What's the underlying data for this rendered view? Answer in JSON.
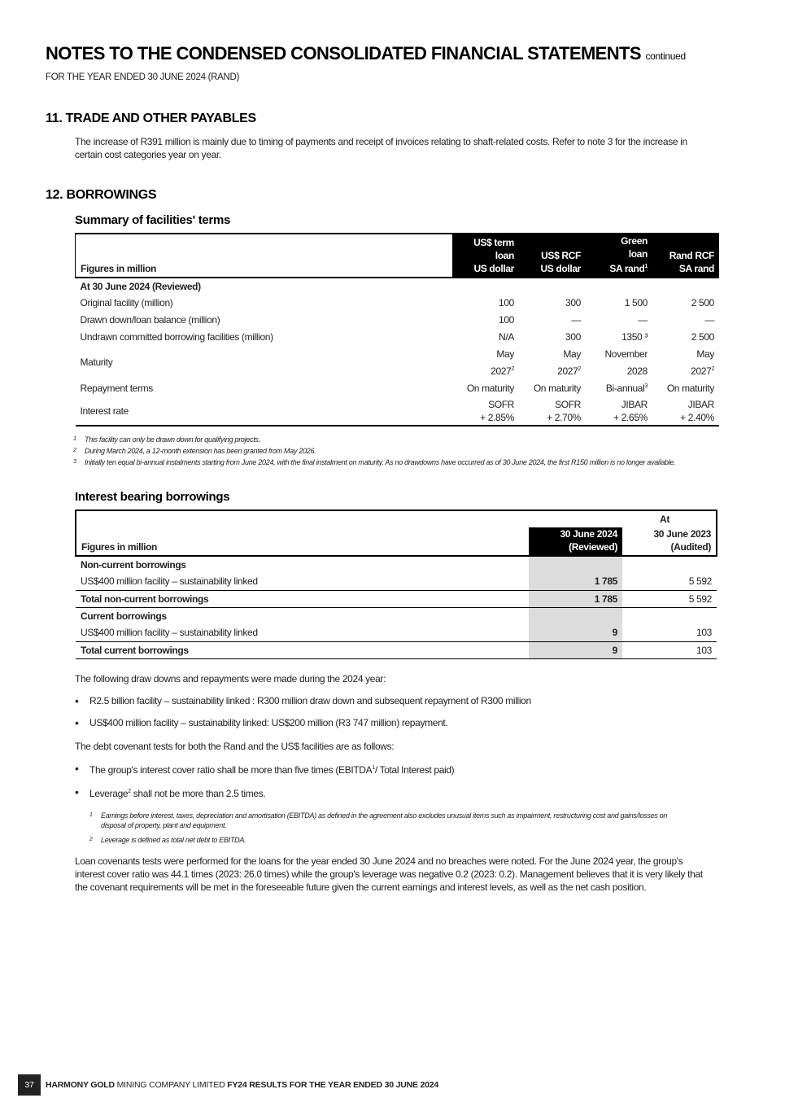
{
  "header": {
    "title": "NOTES TO THE CONDENSED CONSOLIDATED FINANCIAL STATEMENTS",
    "title_suffix": "continued",
    "subtitle": "FOR THE YEAR ENDED 30 JUNE 2024 (RAND)"
  },
  "s11": {
    "heading": "11.  TRADE AND OTHER PAYABLES",
    "text": "The increase of R391 million is mainly due to timing of payments and receipt of invoices relating to shaft-related costs. Refer to note 3 for the increase in certain cost categories year on year."
  },
  "s12": {
    "heading": "12.  BORROWINGS",
    "summary_title": "Summary of facilities' terms",
    "t1": {
      "label_header": "Figures in million",
      "cols": [
        {
          "l1": "US$ term",
          "l2": "loan",
          "l3": "US dollar",
          "sup": ""
        },
        {
          "l1": "",
          "l2": "US$ RCF",
          "l3": "US dollar",
          "sup": ""
        },
        {
          "l1": "Green",
          "l2": "loan",
          "l3": "SA rand",
          "sup": "1"
        },
        {
          "l1": "",
          "l2": "Rand RCF",
          "l3": "SA rand",
          "sup": ""
        }
      ],
      "section": "At 30 June 2024 (Reviewed)",
      "rows": [
        {
          "label": "Original facility (million)",
          "v": [
            "100",
            "300",
            "1 500",
            "2 500"
          ]
        },
        {
          "label": "Drawn down/loan balance (million)",
          "v": [
            "100",
            "—",
            "—",
            "—"
          ]
        },
        {
          "label": "Undrawn committed borrowing facilities (million)",
          "v": [
            "N/A",
            "300",
            "1350 ³",
            "2 500"
          ]
        }
      ],
      "maturity": {
        "label": "Maturity",
        "a": [
          "May",
          "May",
          "November",
          "May"
        ],
        "b": [
          "2027",
          "2027",
          "2028",
          "2027"
        ],
        "sup": [
          "2",
          "2",
          "",
          "2"
        ]
      },
      "repayment": {
        "label": "Repayment terms",
        "v": [
          "On maturity",
          "On maturity",
          "Bi-annual",
          "On maturity"
        ],
        "sup": [
          "",
          "",
          "3",
          ""
        ]
      },
      "interest": {
        "label": "Interest rate",
        "a": [
          "SOFR",
          "SOFR",
          "JIBAR",
          "JIBAR"
        ],
        "b": [
          "+ 2.85%",
          "+ 2.70%",
          "+ 2.65%",
          "+ 2.40%"
        ]
      }
    },
    "t1_footnotes": [
      "This facility can only be drawn down for qualifying projects.",
      "During March 2024, a 12-month extension has been granted from May 2026.",
      "Initially ten equal bi-annual instalments starting from June 2024, with the final instalment on maturity. As no drawdowns have occurred as of 30 June 2024, the first R150 million is no longer available."
    ],
    "ib_title": "Interest bearing borrowings",
    "t2": {
      "at": "At",
      "label_header": "Figures in million",
      "c1a": "30 June 2024",
      "c1b": "(Reviewed)",
      "c2a": "30 June 2023",
      "c2b": "(Audited)",
      "rows": [
        {
          "label": "Non-current borrowings",
          "a": "",
          "b": "",
          "bold": true
        },
        {
          "label": "US$400 million facility – sustainability linked",
          "a": "1 785",
          "b": "5 592"
        },
        {
          "label": "Total non-current borrowings",
          "a": "1 785",
          "b": "5 592",
          "bold": true
        },
        {
          "label": "Current borrowings",
          "a": "",
          "b": "",
          "bold": true
        },
        {
          "label": "US$400 million facility – sustainability linked",
          "a": "9",
          "b": "103"
        },
        {
          "label": "Total current borrowings",
          "a": "9",
          "b": "103",
          "bold": true
        }
      ]
    },
    "p1": "The following draw downs and repayments were made during the 2024 year:",
    "bullets1": [
      "R2.5 billion facility – sustainability linked : R300 million draw down and subsequent repayment of R300 million",
      "US$400 million facility – sustainability linked: US$200 million (R3 747 million) repayment."
    ],
    "p2": "The debt covenant tests for both the Rand and the US$ facilities are as follows:",
    "bullets2": [
      {
        "a": "The group's interest cover ratio shall be more than five times (EBITDA",
        "sup": "1",
        "b": "/ Total Interest paid)"
      },
      {
        "a": "Leverage",
        "sup": "2",
        "b": " shall not be more than 2.5 times."
      }
    ],
    "footnotes2": [
      "Earnings before interest, taxes, depreciation and amortisation (EBITDA) as defined in the agreement also excludes unusual items such as impairment, restructuring cost and gains/losses on disposal of property, plant and equipment.",
      "Leverage is defined as total net debt to EBITDA."
    ],
    "p3": "Loan covenants tests were performed for the loans for the year ended 30 June 2024 and no breaches were noted. For the June 2024 year, the group's interest cover ratio was 44.1 times (2023: 26.0 times) while the group's leverage was negative 0.2 (2023: 0.2). Management believes that it is very likely that the covenant requirements will be met in the foreseeable future given the current earnings and interest levels, as well as the net cash position."
  },
  "footer": {
    "page": "37",
    "company_bold": "HARMONY GOLD",
    "company_rest": " MINING COMPANY LIMITED ",
    "report": "FY24 RESULTS FOR THE YEAR ENDED 30 JUNE 2024"
  }
}
